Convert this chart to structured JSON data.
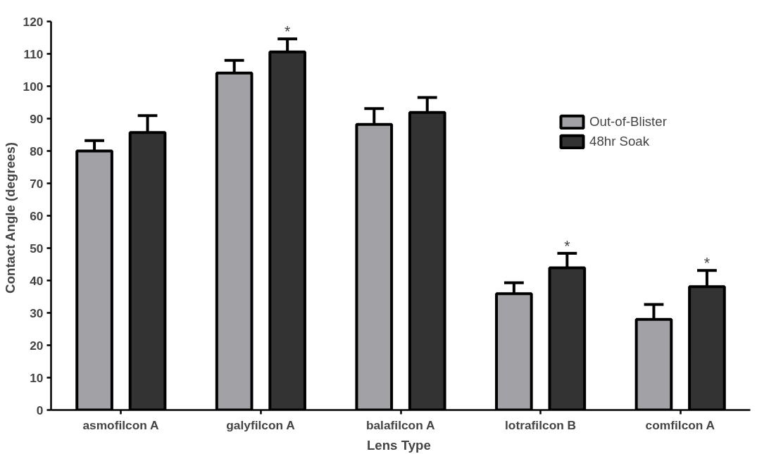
{
  "chart_data": {
    "type": "bar",
    "xlabel": "Lens  Type",
    "ylabel": "Contact  Angle (degrees)",
    "categories": [
      "asmofilcon A",
      "galyfilcon A",
      "balafilcon A",
      "lotrafilcon B",
      "comfilcon A"
    ],
    "series": [
      {
        "name": "Out-of-Blister",
        "color": "#a2a1a6",
        "values": [
          80.0,
          104.1,
          88.2,
          35.9,
          28.0
        ],
        "errors": [
          3.2,
          3.9,
          4.9,
          3.4,
          4.6
        ]
      },
      {
        "name": "48hr Soak",
        "color": "#333333",
        "values": [
          85.7,
          110.6,
          91.9,
          43.9,
          38.1
        ],
        "errors": [
          5.2,
          4.0,
          4.6,
          4.5,
          5.0
        ]
      }
    ],
    "ylim": [
      0,
      120
    ],
    "yticks": [
      0,
      10,
      20,
      30,
      40,
      50,
      60,
      70,
      80,
      90,
      100,
      110,
      120
    ],
    "grid": false,
    "legend": "top right",
    "annotations": [
      "*",
      "*",
      "*"
    ]
  }
}
